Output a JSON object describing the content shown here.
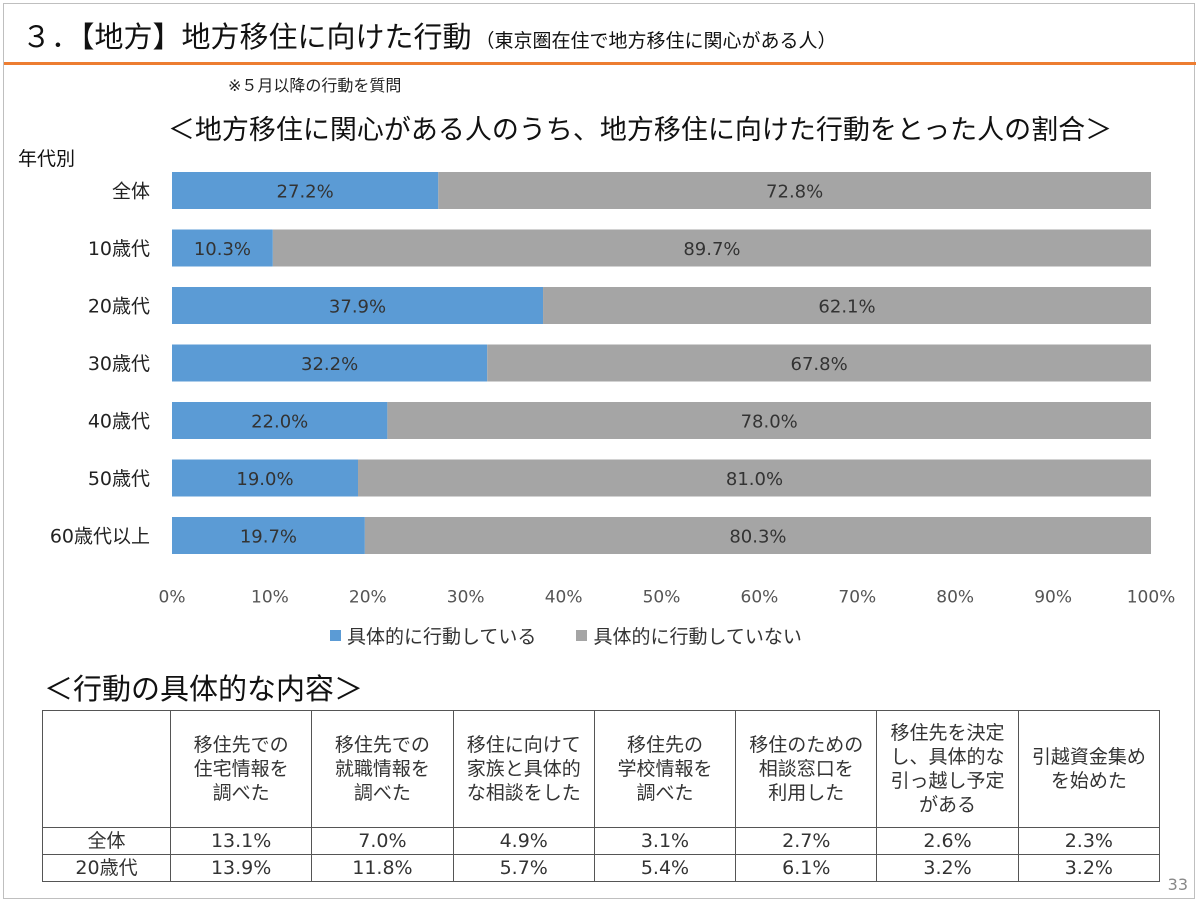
{
  "header": {
    "title": "３．【地方】地方移住に向けた行動",
    "subtitle": "（東京圏在住で地方移住に関心がある人）",
    "note": "※５月以降の行動を質問"
  },
  "group_label": "年代別",
  "chart_data": {
    "type": "bar",
    "orientation": "horizontal",
    "stacked": true,
    "title": "＜地方移住に関心がある人のうち、地方移住に向けた行動をとった人の割合＞",
    "categories": [
      "全体",
      "10歳代",
      "20歳代",
      "30歳代",
      "40歳代",
      "50歳代",
      "60歳代以上"
    ],
    "series": [
      {
        "name": "具体的に行動している",
        "color": "#5b9bd5",
        "values": [
          27.2,
          10.3,
          37.9,
          32.2,
          22.0,
          19.0,
          19.7
        ]
      },
      {
        "name": "具体的に行動していない",
        "color": "#a5a5a5",
        "values": [
          72.8,
          89.7,
          62.1,
          67.8,
          78.0,
          81.0,
          80.3
        ]
      }
    ],
    "xlim": [
      0,
      100
    ],
    "xticks": [
      "0%",
      "10%",
      "20%",
      "30%",
      "40%",
      "50%",
      "60%",
      "70%",
      "80%",
      "90%",
      "100%"
    ],
    "legend_position": "bottom"
  },
  "detail": {
    "title": "＜行動の具体的な内容＞",
    "columns": [
      [
        "移住先での",
        "住宅情報を",
        "調べた"
      ],
      [
        "移住先での",
        "就職情報を",
        "調べた"
      ],
      [
        "移住に向けて",
        "家族と具体的",
        "な相談をした"
      ],
      [
        "移住先の",
        "学校情報を",
        "調べた"
      ],
      [
        "移住のための",
        "相談窓口を",
        "利用した"
      ],
      [
        "移住先を決定",
        "し、具体的な",
        "引っ越し予定",
        "がある"
      ],
      [
        "引越資金集め",
        "を始めた"
      ]
    ],
    "rows": [
      {
        "label": "全体",
        "values": [
          "13.1%",
          "7.0%",
          "4.9%",
          "3.1%",
          "2.7%",
          "2.6%",
          "2.3%"
        ]
      },
      {
        "label": "20歳代",
        "values": [
          "13.9%",
          "11.8%",
          "5.7%",
          "5.4%",
          "6.1%",
          "3.2%",
          "3.2%"
        ]
      }
    ]
  },
  "page_number": "33"
}
